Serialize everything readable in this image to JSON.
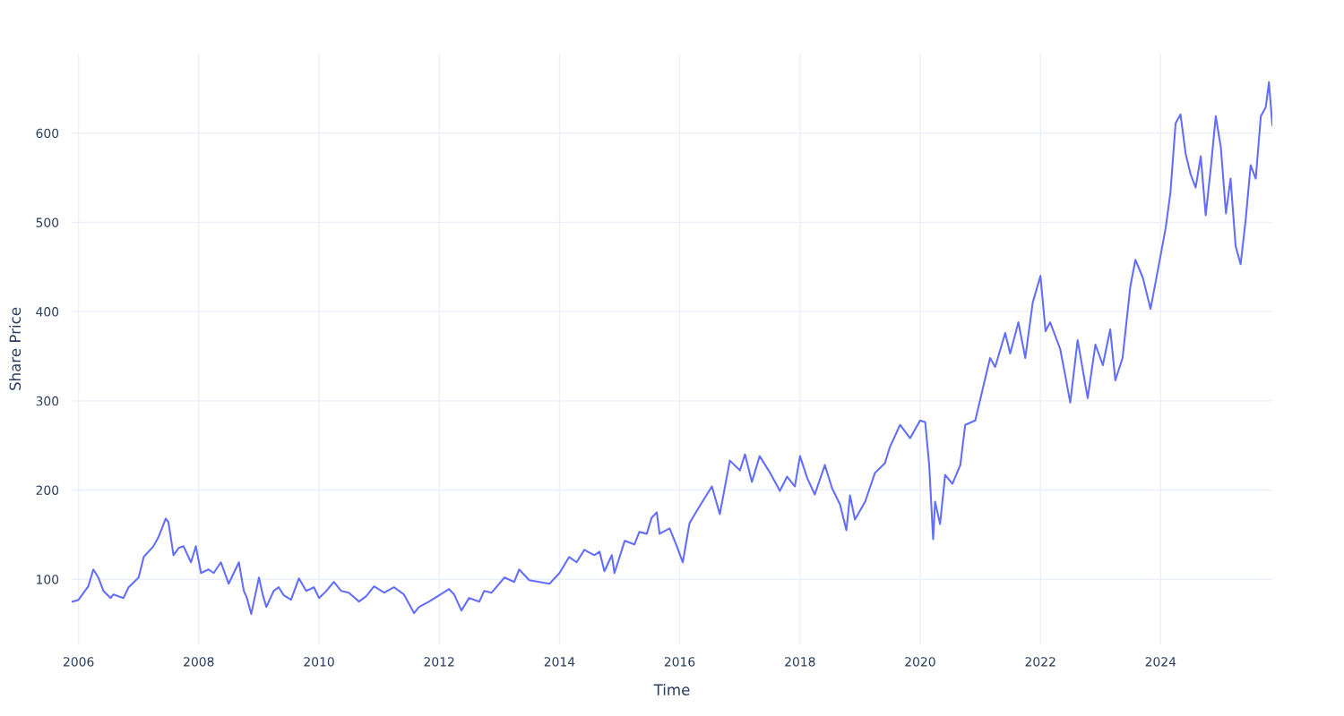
{
  "chart_data": {
    "type": "line",
    "xlabel": "Time",
    "ylabel": "Share Price",
    "x": [
      "2005-11-25",
      "2006-01-01",
      "2006-03-01",
      "2006-04-01",
      "2006-05-01",
      "2006-06-01",
      "2006-07-15",
      "2006-08-01",
      "2006-10-01",
      "2006-11-01",
      "2007-01-01",
      "2007-02-01",
      "2007-04-01",
      "2007-05-01",
      "2007-06-15",
      "2007-07-01",
      "2007-08-01",
      "2007-09-01",
      "2007-10-01",
      "2007-11-15",
      "2007-12-15",
      "2008-01-15",
      "2008-03-01",
      "2008-04-01",
      "2008-05-15",
      "2008-07-01",
      "2008-08-01",
      "2008-09-01",
      "2008-10-01",
      "2008-10-20",
      "2008-11-15",
      "2009-01-01",
      "2009-01-25",
      "2009-02-15",
      "2009-04-01",
      "2009-05-01",
      "2009-06-01",
      "2009-07-15",
      "2009-09-01",
      "2009-10-15",
      "2009-12-01",
      "2010-01-01",
      "2010-02-15",
      "2010-04-01",
      "2010-05-15",
      "2010-07-01",
      "2010-09-01",
      "2010-10-15",
      "2010-12-01",
      "2011-02-01",
      "2011-04-01",
      "2011-06-01",
      "2011-08-01",
      "2011-09-01",
      "2011-11-01",
      "2012-01-01",
      "2012-03-01",
      "2012-04-01",
      "2012-05-15",
      "2012-07-01",
      "2012-09-01",
      "2012-10-01",
      "2012-11-15",
      "2013-02-01",
      "2013-04-01",
      "2013-05-01",
      "2013-07-01",
      "2013-09-01",
      "2013-11-01",
      "2014-01-01",
      "2014-03-01",
      "2014-04-15",
      "2014-06-01",
      "2014-08-01",
      "2014-09-01",
      "2014-10-01",
      "2014-11-15",
      "2014-12-01",
      "2015-02-01",
      "2015-04-01",
      "2015-05-01",
      "2015-06-15",
      "2015-07-15",
      "2015-08-15",
      "2015-09-01",
      "2015-11-01",
      "2015-12-15",
      "2016-01-20",
      "2016-03-01",
      "2016-04-15",
      "2016-06-01",
      "2016-07-15",
      "2016-09-01",
      "2016-11-01",
      "2017-01-01",
      "2017-02-01",
      "2017-03-15",
      "2017-05-01",
      "2017-07-01",
      "2017-09-01",
      "2017-10-15",
      "2017-12-01",
      "2018-01-01",
      "2018-02-15",
      "2018-04-01",
      "2018-06-01",
      "2018-07-15",
      "2018-09-01",
      "2018-10-10",
      "2018-11-01",
      "2018-12-01",
      "2019-02-01",
      "2019-04-01",
      "2019-06-01",
      "2019-07-01",
      "2019-09-01",
      "2019-11-01",
      "2020-01-01",
      "2020-02-01",
      "2020-02-25",
      "2020-03-20",
      "2020-04-01",
      "2020-05-01",
      "2020-06-01",
      "2020-07-15",
      "2020-09-01",
      "2020-10-01",
      "2020-12-01",
      "2021-01-15",
      "2021-03-01",
      "2021-04-01",
      "2021-06-01",
      "2021-07-01",
      "2021-08-20",
      "2021-10-01",
      "2021-11-15",
      "2022-01-01",
      "2022-02-01",
      "2022-03-01",
      "2022-05-01",
      "2022-06-01",
      "2022-07-01",
      "2022-08-15",
      "2022-10-15",
      "2022-12-01",
      "2023-01-15",
      "2023-03-01",
      "2023-04-01",
      "2023-05-15",
      "2023-07-01",
      "2023-08-01",
      "2023-09-15",
      "2023-11-01",
      "2024-01-01",
      "2024-02-01",
      "2024-03-01",
      "2024-04-01",
      "2024-05-01",
      "2024-06-01",
      "2024-07-01",
      "2024-08-01",
      "2024-09-01",
      "2024-10-01",
      "2024-11-01",
      "2024-12-01",
      "2025-01-01",
      "2025-02-01",
      "2025-03-01",
      "2025-04-01",
      "2025-05-01",
      "2025-06-01",
      "2025-07-01",
      "2025-08-01",
      "2025-09-01",
      "2025-10-01",
      "2025-10-20",
      "2025-11-10"
    ],
    "series": [
      {
        "color": "#636efa",
        "values": [
          75,
          77,
          92,
          111,
          102,
          87,
          79,
          83,
          79,
          91,
          102,
          125,
          137,
          147,
          168,
          164,
          127,
          135,
          137,
          119,
          137,
          107,
          111,
          107,
          119,
          95,
          107,
          119,
          87,
          79,
          61,
          102,
          82,
          69,
          87,
          91,
          82,
          77,
          101,
          87,
          91,
          79,
          87,
          97,
          87,
          85,
          75,
          81,
          92,
          85,
          91,
          83,
          62,
          69,
          75,
          82,
          89,
          83,
          65,
          79,
          75,
          87,
          85,
          102,
          97,
          111,
          99,
          97,
          95,
          107,
          125,
          119,
          133,
          127,
          131,
          109,
          127,
          107,
          143,
          139,
          153,
          151,
          169,
          175,
          151,
          157,
          137,
          119,
          163,
          177,
          191,
          204,
          173,
          233,
          222,
          240,
          209,
          238,
          220,
          199,
          215,
          204,
          238,
          213,
          195,
          228,
          202,
          184,
          155,
          194,
          167,
          187,
          219,
          230,
          248,
          273,
          258,
          278,
          276,
          228,
          145,
          187,
          162,
          217,
          207,
          228,
          273,
          278,
          313,
          348,
          338,
          376,
          353,
          388,
          348,
          410,
          440,
          378,
          388,
          358,
          328,
          298,
          368,
          303,
          363,
          340,
          380,
          323,
          348,
          428,
          458,
          438,
          403,
          463,
          494,
          534,
          611,
          621,
          577,
          554,
          539,
          574,
          508,
          561,
          619,
          584,
          510,
          549,
          473,
          453,
          503,
          564,
          549,
          619,
          629,
          657,
          609
        ]
      }
    ],
    "xlim": [
      "2005-11-20",
      "2025-11-10"
    ],
    "xticks": [
      "2006",
      "2008",
      "2010",
      "2012",
      "2014",
      "2016",
      "2018",
      "2020",
      "2022",
      "2024"
    ],
    "ylim": [
      27,
      689
    ],
    "yticks": [
      100,
      200,
      300,
      400,
      500,
      600
    ],
    "grid": true,
    "line_style": "solid",
    "marker": "none"
  }
}
